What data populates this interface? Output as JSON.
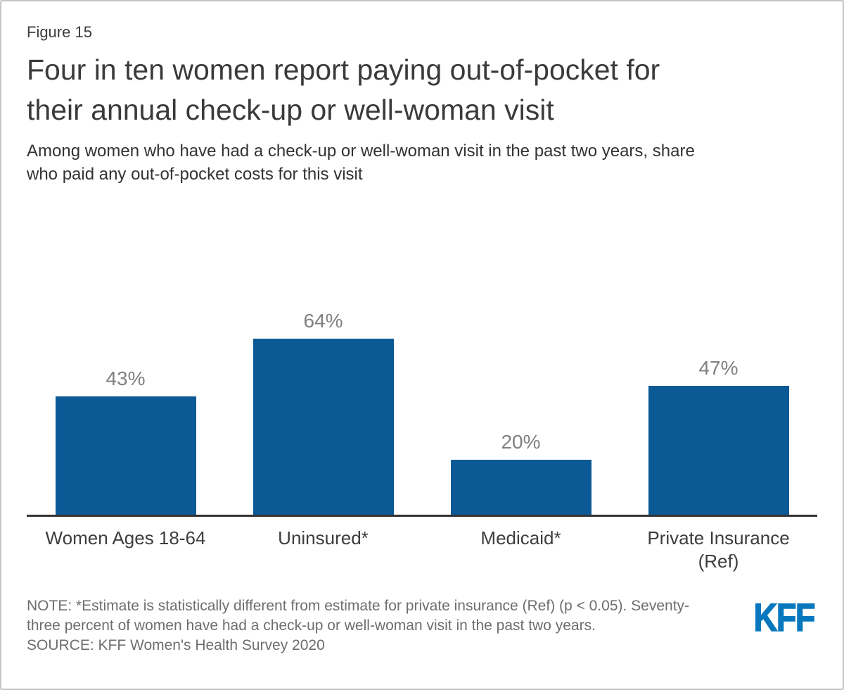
{
  "figure_label": "Figure 15",
  "title": {
    "line1": "Four in ten women report paying out-of-pocket for",
    "line2": "their annual check-up or well-woman visit"
  },
  "subtitle": {
    "line1": "Among women who have had a check-up or well-woman visit in the past two years, share",
    "line2": "who paid any out-of-pocket costs for this visit"
  },
  "chart_data": {
    "type": "bar",
    "title": "Four in ten women report paying out-of-pocket for their annual check-up or well-woman visit",
    "subtitle": "Among women who have had a check-up or well-woman visit in the past two years, share who paid any out-of-pocket costs for this visit",
    "categories": [
      "Women Ages 18-64",
      "Uninsured*",
      "Medicaid*",
      "Private Insurance\n(Ref)"
    ],
    "values": [
      43,
      64,
      20,
      47
    ],
    "value_labels": [
      "43%",
      "64%",
      "20%",
      "47%"
    ],
    "xlabel": "",
    "ylabel": "",
    "ylim": [
      0,
      80
    ],
    "grid": false,
    "legend": "none",
    "bar_color": "#0b5a96",
    "value_label_color": "#808080",
    "axis_line_color": "#333333"
  },
  "footer": {
    "note_line1": "NOTE: *Estimate is statistically different from estimate for private insurance (Ref) (p < 0.05). Seventy-",
    "note_line2": "three percent of women have had a check-up or well-woman visit in the past two years.",
    "source": "SOURCE: KFF Women's Health Survey 2020",
    "logo_text": "KFF",
    "logo_color": "#0778be"
  }
}
